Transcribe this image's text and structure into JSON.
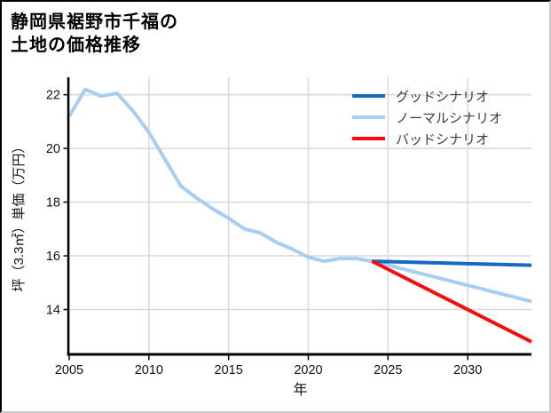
{
  "title": {
    "line1": "静岡県裾野市千福の",
    "line2": "土地の価格推移"
  },
  "axes": {
    "x_label": "年",
    "y_label": "坪（3.3㎡）単価（万円）"
  },
  "legend": [
    {
      "label": "グッドシナリオ",
      "color": "#1569c0"
    },
    {
      "label": "ノーマルシナリオ",
      "color": "#a6cdf2"
    },
    {
      "label": "バッドシナリオ",
      "color": "#f50d0d"
    }
  ],
  "colors": {
    "gridline": "#d8d8d8",
    "spine": "#000000",
    "tick_text": "#111111"
  },
  "chart_data": {
    "type": "line",
    "title": "静岡県裾野市千福の土地の価格推移",
    "xlabel": "年",
    "ylabel": "坪（3.3㎡）単価（万円）",
    "xlim": [
      2005,
      2034
    ],
    "ylim": [
      12.33,
      22.65
    ],
    "xticks": [
      2005,
      2010,
      2015,
      2020,
      2025,
      2030
    ],
    "yticks": [
      14,
      16,
      18,
      20,
      22
    ],
    "grid": true,
    "legend_position": "upper-right",
    "series": [
      {
        "id": "normal",
        "name": "ノーマルシナリオ",
        "color": "#a6cdf2",
        "x": [
          2005,
          2006,
          2007,
          2008,
          2009,
          2010,
          2011,
          2012,
          2013,
          2014,
          2015,
          2016,
          2017,
          2018,
          2019,
          2020,
          2021,
          2022,
          2023,
          2024,
          2034
        ],
        "values": [
          21.2,
          22.2,
          21.95,
          22.05,
          21.4,
          20.6,
          19.6,
          18.6,
          18.15,
          17.75,
          17.4,
          17.0,
          16.85,
          16.5,
          16.25,
          15.95,
          15.8,
          15.9,
          15.9,
          15.8,
          14.3
        ]
      },
      {
        "id": "good",
        "name": "グッドシナリオ",
        "color": "#1569c0",
        "x": [
          2024,
          2034
        ],
        "values": [
          15.8,
          15.65
        ]
      },
      {
        "id": "bad",
        "name": "バッドシナリオ",
        "color": "#f50d0d",
        "x": [
          2024,
          2034
        ],
        "values": [
          15.8,
          12.8
        ]
      }
    ]
  }
}
